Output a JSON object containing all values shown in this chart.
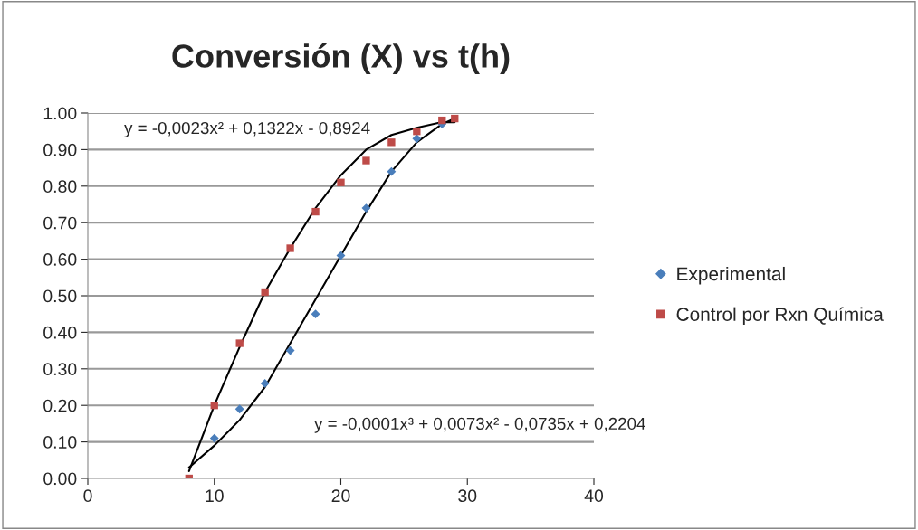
{
  "chart_data": {
    "type": "scatter",
    "title": "Conversión (X) vs t(h)",
    "xlim": [
      0,
      40
    ],
    "xticks": [
      0,
      10,
      20,
      30,
      40
    ],
    "ylim": [
      0,
      1
    ],
    "yticks": [
      {
        "value": 0,
        "label": "0.00"
      },
      {
        "value": 0.1,
        "label": "0.10"
      },
      {
        "value": 0.2,
        "label": "0.20"
      },
      {
        "value": 0.3,
        "label": "0.30"
      },
      {
        "value": 0.4,
        "label": "0.40"
      },
      {
        "value": 0.5,
        "label": "0.50"
      },
      {
        "value": 0.6,
        "label": "0.60"
      },
      {
        "value": 0.7,
        "label": "0.70"
      },
      {
        "value": 0.8,
        "label": "0.80"
      },
      {
        "value": 0.9,
        "label": "0.90"
      },
      {
        "value": 1,
        "label": "1.00"
      }
    ],
    "grid": "y",
    "legend": "right",
    "series": [
      {
        "name": "Experimental",
        "marker": "diamond",
        "color": "#4a7ebb",
        "x": [
          10,
          12,
          14,
          16,
          18,
          20,
          22,
          24,
          26,
          28
        ],
        "values": [
          0.11,
          0.19,
          0.26,
          0.35,
          0.45,
          0.61,
          0.74,
          0.84,
          0.93,
          0.97
        ]
      },
      {
        "name": "Control por Rxn Química",
        "marker": "square",
        "color": "#be4b48",
        "x": [
          8,
          10,
          12,
          14,
          16,
          18,
          20,
          22,
          24,
          26,
          28,
          29
        ],
        "values": [
          0.0,
          0.2,
          0.37,
          0.51,
          0.63,
          0.73,
          0.81,
          0.87,
          0.92,
          0.95,
          0.98,
          0.985
        ]
      },
      {
        "type": "line",
        "marker": "none",
        "color": "#000000",
        "x": [
          8,
          10,
          12,
          14,
          16,
          18,
          20,
          22,
          24,
          26,
          28,
          29
        ],
        "values": [
          0.02,
          0.2,
          0.36,
          0.51,
          0.63,
          0.74,
          0.83,
          0.9,
          0.94,
          0.96,
          0.975,
          0.975
        ]
      },
      {
        "type": "line",
        "marker": "none",
        "color": "#000000",
        "x": [
          8,
          10,
          12,
          14,
          16,
          18,
          20,
          22,
          24,
          26,
          28,
          29
        ],
        "values": [
          0.03,
          0.09,
          0.16,
          0.25,
          0.37,
          0.49,
          0.61,
          0.73,
          0.84,
          0.92,
          0.97,
          0.985
        ]
      }
    ],
    "annotations": [
      "y = -0,0023x² + 0,1322x - 0,8924",
      "y = -0,0001x³ + 0,0073x² - 0,0735x + 0,2204"
    ]
  }
}
